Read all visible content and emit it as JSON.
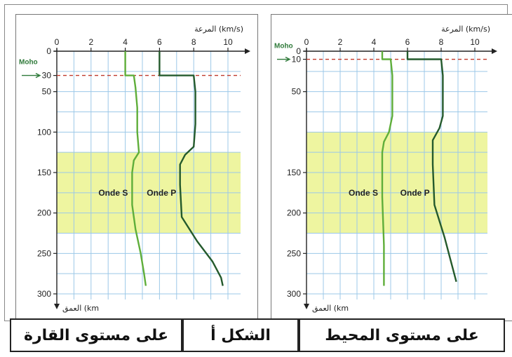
{
  "chart_data": [
    {
      "type": "line",
      "panel": "continent",
      "speed_label": "المرعة (km/s)",
      "depth_label": "العمق (km",
      "xlim": [
        0,
        10
      ],
      "ylim": [
        0,
        300
      ],
      "x_ticks": [
        "0",
        "2",
        "4",
        "6",
        "8",
        "10"
      ],
      "y_ticks": [
        {
          "value": 0,
          "label": "0"
        },
        {
          "value": 30,
          "label": "30"
        },
        {
          "value": 50,
          "label": "50"
        },
        {
          "value": 100,
          "label": "100"
        },
        {
          "value": 150,
          "label": "150"
        },
        {
          "value": 200,
          "label": "200"
        },
        {
          "value": 250,
          "label": "250"
        },
        {
          "value": 300,
          "label": "300"
        }
      ],
      "moho_label": "Moho",
      "moho_depth": 30,
      "low_velocity_zone": [
        125,
        225
      ],
      "series": [
        {
          "name": "Onde S",
          "color": "#5fae3a",
          "x": [
            4.0,
            4.0,
            4.5,
            4.6,
            4.7,
            4.7,
            4.8,
            4.5,
            4.4,
            4.4,
            4.6,
            4.9,
            5.1,
            5.2
          ],
          "y": [
            0,
            30,
            30,
            45,
            70,
            100,
            125,
            135,
            150,
            190,
            220,
            250,
            275,
            290
          ]
        },
        {
          "name": "Onde P",
          "color": "#245a2c",
          "x": [
            6.0,
            6.0,
            8.0,
            8.1,
            8.1,
            8.0,
            7.5,
            7.2,
            7.2,
            7.3,
            8.2,
            9.1,
            9.6,
            9.7
          ],
          "y": [
            0,
            30,
            30,
            50,
            90,
            118,
            128,
            140,
            165,
            205,
            235,
            260,
            280,
            290
          ]
        }
      ]
    },
    {
      "type": "line",
      "panel": "ocean",
      "speed_label": "المرعة (km/s)",
      "depth_label": "العمق (km",
      "xlim": [
        0,
        10
      ],
      "ylim": [
        0,
        300
      ],
      "x_ticks": [
        "0",
        "2",
        "4",
        "6",
        "8",
        "10"
      ],
      "y_ticks": [
        {
          "value": 0,
          "label": "0"
        },
        {
          "value": 10,
          "label": "10"
        },
        {
          "value": 50,
          "label": "50"
        },
        {
          "value": 150,
          "label": "150"
        },
        {
          "value": 200,
          "label": "200"
        },
        {
          "value": 250,
          "label": "250"
        },
        {
          "value": 300,
          "label": "300"
        }
      ],
      "moho_label": "Moho",
      "moho_depth": 10,
      "low_velocity_zone": [
        100,
        225
      ],
      "series": [
        {
          "name": "Onde S",
          "color": "#5fae3a",
          "x": [
            4.5,
            4.5,
            5.0,
            5.1,
            5.1,
            4.9,
            4.6,
            4.5,
            4.5,
            4.6,
            4.6
          ],
          "y": [
            0,
            10,
            10,
            30,
            80,
            100,
            112,
            125,
            180,
            240,
            290
          ]
        },
        {
          "name": "Onde P",
          "color": "#245a2c",
          "x": [
            6.0,
            6.0,
            8.0,
            8.1,
            8.1,
            7.9,
            7.5,
            7.5,
            7.6,
            8.2,
            8.9
          ],
          "y": [
            0,
            10,
            10,
            30,
            80,
            95,
            110,
            140,
            190,
            230,
            285
          ]
        }
      ]
    }
  ],
  "captions": {
    "left": "على مستوى القارة",
    "middle": "الشكل أ",
    "right": "على مستوى المحيط"
  }
}
